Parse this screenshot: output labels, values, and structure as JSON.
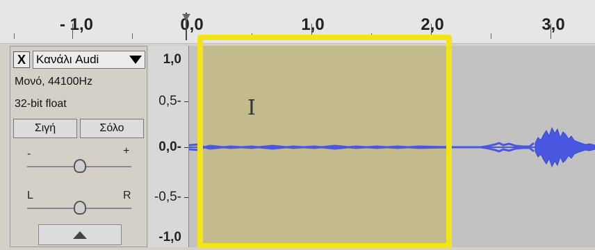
{
  "ruler": {
    "labels": [
      "- 1,0",
      "0,0",
      "1,0",
      "2,0",
      "3,0"
    ]
  },
  "track": {
    "close_label": "X",
    "name": "Κανάλι Audi",
    "channel_info": "Μονό, 44100Hz",
    "format_info": "32-bit float",
    "mute_label": "Σιγή",
    "solo_label": "Σόλο",
    "gain": {
      "minus_label": "-",
      "plus_label": "+",
      "level": 0.5
    },
    "pan": {
      "left_label": "L",
      "right_label": "R",
      "level": 0.5
    }
  },
  "vscale": {
    "labels": [
      "1,0",
      "0,5-",
      "0,0-",
      "-0,5-",
      "-1,0"
    ]
  },
  "colors": {
    "selection": "#c3bb8c",
    "highlight": "#f2e418",
    "waveform": "#4a57e0"
  }
}
